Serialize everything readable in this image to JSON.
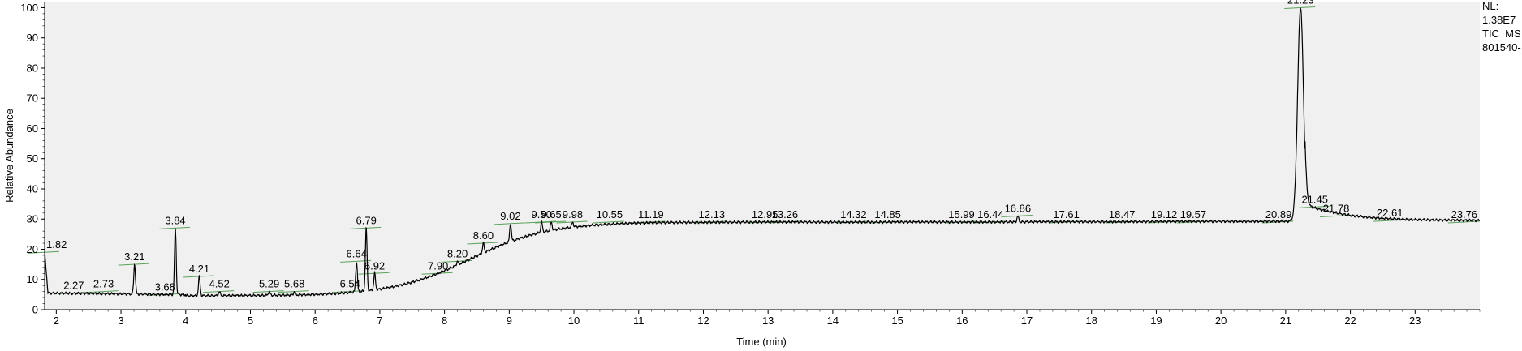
{
  "chart_data": {
    "type": "line",
    "xlabel": "Time (min)",
    "ylabel": "Relative Abundance",
    "xlim": [
      1.82,
      24.0
    ],
    "ylim": [
      0,
      102
    ],
    "x_ticks": [
      2,
      3,
      4,
      5,
      6,
      7,
      8,
      9,
      10,
      11,
      12,
      13,
      14,
      15,
      16,
      17,
      18,
      19,
      20,
      21,
      22,
      23
    ],
    "y_ticks": [
      0,
      10,
      20,
      30,
      40,
      50,
      60,
      70,
      80,
      90,
      100
    ],
    "grid": false,
    "colors": {
      "trace": "#000000",
      "marker": "#5aa05a",
      "plot_bg": "#f0f0f0"
    },
    "info_box": [
      "NL:",
      "1.38E7",
      "TIC  MS",
      "801540-"
    ],
    "peaks": [
      {
        "label": "1.82",
        "x": 1.82,
        "y": 19
      },
      {
        "label": "2.27",
        "x": 2.27,
        "y": 5.5
      },
      {
        "label": "2.73",
        "x": 2.73,
        "y": 6
      },
      {
        "label": "3.21",
        "x": 3.21,
        "y": 15
      },
      {
        "label": "3.68",
        "x": 3.68,
        "y": 5
      },
      {
        "label": "3.84",
        "x": 3.84,
        "y": 27
      },
      {
        "label": "4.21",
        "x": 4.21,
        "y": 11
      },
      {
        "label": "4.52",
        "x": 4.52,
        "y": 6
      },
      {
        "label": "5.29",
        "x": 5.29,
        "y": 6
      },
      {
        "label": "5.68",
        "x": 5.68,
        "y": 6
      },
      {
        "label": "6.54",
        "x": 6.54,
        "y": 6
      },
      {
        "label": "6.64",
        "x": 6.64,
        "y": 16
      },
      {
        "label": "6.79",
        "x": 6.79,
        "y": 27
      },
      {
        "label": "6.92",
        "x": 6.92,
        "y": 12
      },
      {
        "label": "7.90",
        "x": 7.9,
        "y": 12
      },
      {
        "label": "8.20",
        "x": 8.2,
        "y": 16
      },
      {
        "label": "8.60",
        "x": 8.6,
        "y": 22
      },
      {
        "label": "9.02",
        "x": 9.02,
        "y": 28.5
      },
      {
        "label": "9.50",
        "x": 9.5,
        "y": 29
      },
      {
        "label": "9.65",
        "x": 9.65,
        "y": 29
      },
      {
        "label": "9.98",
        "x": 9.98,
        "y": 29
      },
      {
        "label": "10.55",
        "x": 10.55,
        "y": 29
      },
      {
        "label": "11.19",
        "x": 11.19,
        "y": 29
      },
      {
        "label": "12.13",
        "x": 12.13,
        "y": 29
      },
      {
        "label": "12.95",
        "x": 12.95,
        "y": 29
      },
      {
        "label": "13.26",
        "x": 13.26,
        "y": 29
      },
      {
        "label": "14.32",
        "x": 14.32,
        "y": 29
      },
      {
        "label": "14.85",
        "x": 14.85,
        "y": 29
      },
      {
        "label": "15.99",
        "x": 15.99,
        "y": 29
      },
      {
        "label": "16.44",
        "x": 16.44,
        "y": 29
      },
      {
        "label": "16.86",
        "x": 16.86,
        "y": 31
      },
      {
        "label": "17.61",
        "x": 17.61,
        "y": 29
      },
      {
        "label": "18.47",
        "x": 18.47,
        "y": 29
      },
      {
        "label": "19.12",
        "x": 19.12,
        "y": 29
      },
      {
        "label": "19.57",
        "x": 19.57,
        "y": 29
      },
      {
        "label": "20.89",
        "x": 20.89,
        "y": 29
      },
      {
        "label": "21.23",
        "x": 21.23,
        "y": 100
      },
      {
        "label": "21.45",
        "x": 21.45,
        "y": 34
      },
      {
        "label": "21.78",
        "x": 21.78,
        "y": 31
      },
      {
        "label": "22.61",
        "x": 22.61,
        "y": 29.5
      },
      {
        "label": "23.76",
        "x": 23.76,
        "y": 29
      }
    ]
  }
}
